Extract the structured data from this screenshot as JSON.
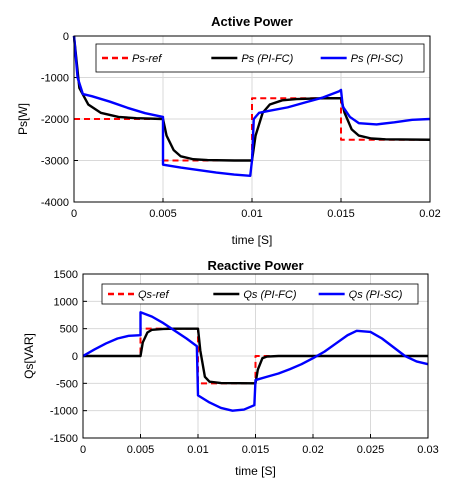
{
  "chart_data": [
    {
      "type": "line",
      "title": "Active Power",
      "xlabel": "time [S]",
      "ylabel": "Ps[W]",
      "xlim": [
        0,
        0.02
      ],
      "ylim": [
        -4000,
        0
      ],
      "xticks": [
        "0",
        "0.005",
        "0.01",
        "0.015",
        "0.02"
      ],
      "yticks": [
        "0",
        "-1000",
        "-2000",
        "-3000",
        "-4000"
      ],
      "grid": true,
      "legend_position": "top-right",
      "colors": {
        "ref": "#ff0000",
        "fc": "#000000",
        "sc": "#0000ff"
      },
      "series": [
        {
          "name": "Ps-ref",
          "style": "dashed",
          "color": "#ff0000",
          "x": [
            0,
            0.005,
            0.005,
            0.01,
            0.01,
            0.015,
            0.015,
            0.02
          ],
          "y": [
            -2000,
            -2000,
            -3000,
            -3000,
            -1500,
            -1500,
            -2500,
            -2500
          ]
        },
        {
          "name": "Ps (PI-FC)",
          "style": "solid",
          "color": "#000000",
          "x": [
            0,
            0.0003,
            0.0008,
            0.0015,
            0.0025,
            0.0035,
            0.005,
            0.0052,
            0.0056,
            0.006,
            0.0067,
            0.0075,
            0.009,
            0.01,
            0.0102,
            0.0106,
            0.011,
            0.0117,
            0.0125,
            0.014,
            0.015,
            0.0152,
            0.0156,
            0.016,
            0.0167,
            0.0175,
            0.02
          ],
          "y": [
            0,
            -1250,
            -1650,
            -1850,
            -1950,
            -1980,
            -2000,
            -2400,
            -2750,
            -2900,
            -2970,
            -2990,
            -3000,
            -3000,
            -2400,
            -1850,
            -1650,
            -1550,
            -1520,
            -1500,
            -1500,
            -1850,
            -2250,
            -2400,
            -2470,
            -2490,
            -2500
          ]
        },
        {
          "name": "Ps (PI-SC)",
          "style": "solid",
          "color": "#0000ff",
          "x": [
            0,
            0.0002,
            0.0005,
            0.001,
            0.002,
            0.003,
            0.004,
            0.005,
            0.005,
            0.006,
            0.007,
            0.008,
            0.009,
            0.0099,
            0.01,
            0.0101,
            0.0104,
            0.011,
            0.012,
            0.013,
            0.014,
            0.0149,
            0.015,
            0.0151,
            0.0155,
            0.016,
            0.017,
            0.018,
            0.019,
            0.02
          ],
          "y": [
            0,
            -1000,
            -1400,
            -1450,
            -1580,
            -1730,
            -1860,
            -1950,
            -3100,
            -3170,
            -3230,
            -3290,
            -3340,
            -3370,
            -3000,
            -2000,
            -1850,
            -1800,
            -1720,
            -1600,
            -1480,
            -1330,
            -1300,
            -1700,
            -1950,
            -2100,
            -2130,
            -2080,
            -2020,
            -2000
          ]
        }
      ]
    },
    {
      "type": "line",
      "title": "Reactive Power",
      "xlabel": "time [S]",
      "ylabel": "Qs[VAR]",
      "xlim": [
        0,
        0.03
      ],
      "ylim": [
        -1500,
        1500
      ],
      "xticks": [
        "0",
        "0.005",
        "0.01",
        "0.015",
        "0.02",
        "0.025",
        "0.03"
      ],
      "yticks": [
        "1500",
        "1000",
        "500",
        "0",
        "-500",
        "-1000",
        "-1500"
      ],
      "grid": true,
      "legend_position": "top",
      "colors": {
        "ref": "#ff0000",
        "fc": "#000000",
        "sc": "#0000ff"
      },
      "series": [
        {
          "name": "Qs-ref",
          "style": "dashed",
          "color": "#ff0000",
          "x": [
            0,
            0.005,
            0.005,
            0.01,
            0.01,
            0.015,
            0.015,
            0.03
          ],
          "y": [
            0,
            0,
            500,
            500,
            -500,
            -500,
            0,
            0
          ]
        },
        {
          "name": "Qs (PI-FC)",
          "style": "solid",
          "color": "#000000",
          "x": [
            0,
            0.005,
            0.0052,
            0.0056,
            0.006,
            0.007,
            0.008,
            0.01,
            0.0102,
            0.0106,
            0.011,
            0.012,
            0.015,
            0.0152,
            0.0156,
            0.016,
            0.017,
            0.03
          ],
          "y": [
            0,
            0,
            250,
            430,
            480,
            495,
            500,
            500,
            100,
            -380,
            -470,
            -495,
            -500,
            -250,
            -40,
            -10,
            0,
            0
          ]
        },
        {
          "name": "Qs (PI-SC)",
          "style": "solid",
          "color": "#0000ff",
          "x": [
            0,
            0.001,
            0.002,
            0.003,
            0.004,
            0.005,
            0.005,
            0.006,
            0.007,
            0.008,
            0.009,
            0.0099,
            0.01,
            0.011,
            0.012,
            0.013,
            0.014,
            0.0149,
            0.015,
            0.016,
            0.017,
            0.018,
            0.019,
            0.02,
            0.021,
            0.022,
            0.023,
            0.0238,
            0.025,
            0.026,
            0.027,
            0.028,
            0.029,
            0.03
          ],
          "y": [
            0,
            120,
            230,
            320,
            370,
            380,
            800,
            720,
            600,
            460,
            320,
            180,
            -720,
            -850,
            -950,
            -1000,
            -980,
            -900,
            -440,
            -380,
            -320,
            -240,
            -150,
            -40,
            80,
            230,
            380,
            460,
            440,
            320,
            160,
            0,
            -100,
            -150
          ]
        }
      ]
    }
  ]
}
